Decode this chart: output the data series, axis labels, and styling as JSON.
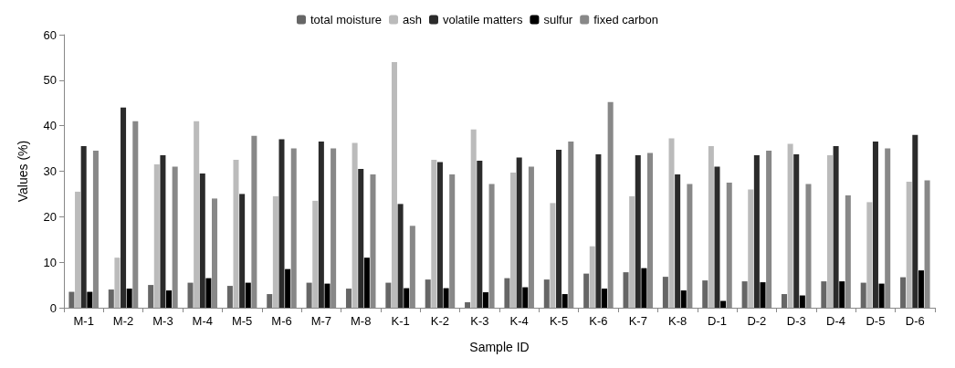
{
  "chart_data": {
    "type": "bar",
    "xlabel": "Sample ID",
    "ylabel": "Values (%)",
    "categories": [
      "M-1",
      "M-2",
      "M-3",
      "M-4",
      "M-5",
      "M-6",
      "M-7",
      "M-8",
      "K-1",
      "K-2",
      "K-3",
      "K-4",
      "K-5",
      "K-6",
      "K-7",
      "K-8",
      "D-1",
      "D-2",
      "D-3",
      "D-4",
      "D-5",
      "D-6"
    ],
    "series": [
      {
        "name": "total moisture",
        "color": "#666666",
        "values": [
          3.5,
          4,
          5,
          5.5,
          4.8,
          3,
          5.5,
          4.2,
          5.5,
          6.2,
          1.2,
          6.5,
          6.2,
          7.5,
          7.8,
          6.8,
          6,
          5.8,
          3,
          5.8,
          5.5,
          6.7
        ]
      },
      {
        "name": "ash",
        "color": "#bbbbbb",
        "values": [
          25.5,
          11,
          31.5,
          41,
          32.5,
          24.5,
          23.5,
          36.2,
          54,
          32.5,
          39.2,
          29.7,
          23,
          13.5,
          24.5,
          37.2,
          35.5,
          26,
          36,
          33.5,
          23.2,
          27.7
        ]
      },
      {
        "name": "volatile matters",
        "color": "#2b2b2b",
        "values": [
          35.5,
          44,
          33.5,
          29.5,
          25,
          37,
          36.5,
          30.5,
          22.8,
          32,
          32.3,
          33,
          34.7,
          33.7,
          33.5,
          29.3,
          31,
          33.5,
          33.7,
          35.5,
          36.5,
          38
        ]
      },
      {
        "name": "sulfur",
        "color": "#000000",
        "values": [
          3.5,
          4.2,
          3.8,
          6.5,
          5.5,
          8.5,
          5.3,
          11,
          4.3,
          4.3,
          3.4,
          4.5,
          3,
          4.2,
          8.7,
          3.8,
          1.5,
          5.6,
          2.7,
          5.8,
          5.3,
          8.2
        ]
      },
      {
        "name": "fixed carbon",
        "color": "#888888",
        "values": [
          34.5,
          41,
          31,
          24,
          37.8,
          35,
          35,
          29.3,
          18,
          29.3,
          27.2,
          31,
          36.5,
          45.2,
          34,
          27.2,
          27.5,
          34.5,
          27.2,
          24.7,
          35,
          28
        ]
      }
    ],
    "ylim": [
      0,
      60
    ],
    "yticks": [
      0,
      10,
      20,
      30,
      40,
      50,
      60
    ],
    "grid": false,
    "legend": "top"
  }
}
